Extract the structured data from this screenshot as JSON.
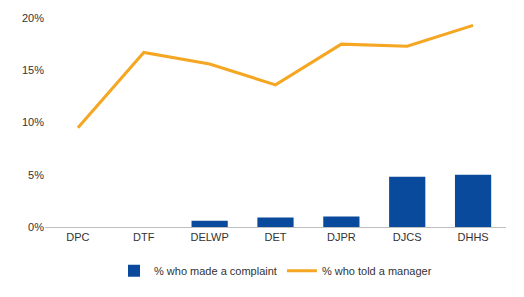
{
  "chart_data": {
    "type": "bar",
    "categories": [
      "DPC",
      "DTF",
      "DELWP",
      "DET",
      "DJPR",
      "DJCS",
      "DHHS"
    ],
    "series": [
      {
        "name": "% who made a complaint",
        "type": "bar",
        "color": "#0a4a9c",
        "values": [
          0,
          0,
          0.6,
          0.9,
          1.0,
          4.8,
          5.0
        ]
      },
      {
        "name": "% who told a manager",
        "type": "line",
        "color": "#f5a623",
        "values": [
          9.5,
          16.7,
          15.6,
          13.6,
          17.5,
          17.3,
          19.3
        ]
      }
    ],
    "ylim": [
      0,
      20
    ],
    "yticks": [
      {
        "value": 0,
        "label": "0%"
      },
      {
        "value": 5,
        "label": "5%"
      },
      {
        "value": 10,
        "label": "10%"
      },
      {
        "value": 15,
        "label": "15%"
      },
      {
        "value": 20,
        "label": "20%"
      }
    ],
    "grid": false,
    "legend": "bottom"
  }
}
